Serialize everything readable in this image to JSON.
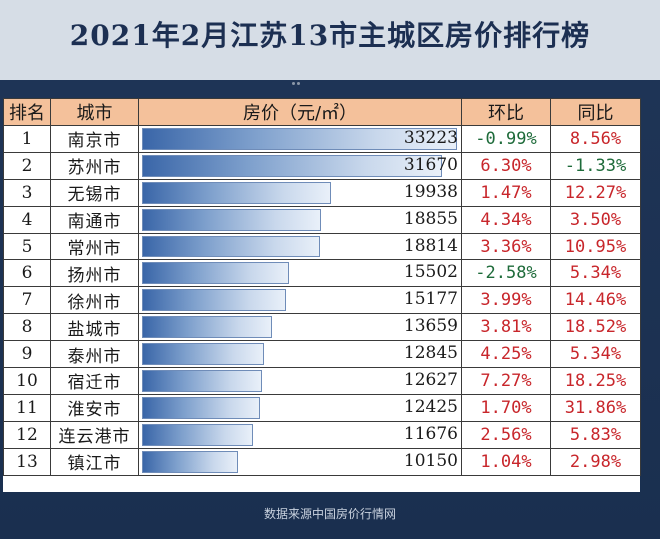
{
  "title": "2021年2月江苏13市主城区房价排行榜",
  "source": "数据来源中国房价行情网",
  "colors": {
    "background": "#1f3557",
    "title_band": "#d6dde6",
    "header_bg": "#f4c19b",
    "bar": "#5b82bd",
    "positive": "#c8262b",
    "negative": "#1e6b3a"
  },
  "headers": {
    "rank": "排名",
    "city": "城市",
    "price": "房价（元/㎡）",
    "mom": "环比",
    "yoy": "同比"
  },
  "chart_data": {
    "type": "bar",
    "title": "2021年2月江苏13市主城区房价排行榜",
    "xlabel": "",
    "ylabel": "房价（元/㎡）",
    "orientation": "horizontal",
    "xlim": [
      0,
      33223
    ],
    "categories": [
      "南京市",
      "苏州市",
      "无锡市",
      "南通市",
      "常州市",
      "扬州市",
      "徐州市",
      "盐城市",
      "泰州市",
      "宿迁市",
      "淮安市",
      "连云港市",
      "镇江市"
    ],
    "values": [
      33223,
      31670,
      19938,
      18855,
      18814,
      15502,
      15177,
      13659,
      12845,
      12627,
      12425,
      11676,
      10150
    ],
    "rows": [
      {
        "rank": "1",
        "city": "南京市",
        "price": "33223",
        "mom": "-0.99%",
        "yoy": "8.56%"
      },
      {
        "rank": "2",
        "city": "苏州市",
        "price": "31670",
        "mom": "6.30%",
        "yoy": "-1.33%"
      },
      {
        "rank": "3",
        "city": "无锡市",
        "price": "19938",
        "mom": "1.47%",
        "yoy": "12.27%"
      },
      {
        "rank": "4",
        "city": "南通市",
        "price": "18855",
        "mom": "4.34%",
        "yoy": "3.50%"
      },
      {
        "rank": "5",
        "city": "常州市",
        "price": "18814",
        "mom": "3.36%",
        "yoy": "10.95%"
      },
      {
        "rank": "6",
        "city": "扬州市",
        "price": "15502",
        "mom": "-2.58%",
        "yoy": "5.34%"
      },
      {
        "rank": "7",
        "city": "徐州市",
        "price": "15177",
        "mom": "3.99%",
        "yoy": "14.46%"
      },
      {
        "rank": "8",
        "city": "盐城市",
        "price": "13659",
        "mom": "3.81%",
        "yoy": "18.52%"
      },
      {
        "rank": "9",
        "city": "泰州市",
        "price": "12845",
        "mom": "4.25%",
        "yoy": "5.34%"
      },
      {
        "rank": "10",
        "city": "宿迁市",
        "price": "12627",
        "mom": "7.27%",
        "yoy": "18.25%"
      },
      {
        "rank": "11",
        "city": "淮安市",
        "price": "12425",
        "mom": "1.70%",
        "yoy": "31.86%"
      },
      {
        "rank": "12",
        "city": "连云港市",
        "price": "11676",
        "mom": "2.56%",
        "yoy": "5.83%"
      },
      {
        "rank": "13",
        "city": "镇江市",
        "price": "10150",
        "mom": "1.04%",
        "yoy": "2.98%"
      }
    ]
  }
}
